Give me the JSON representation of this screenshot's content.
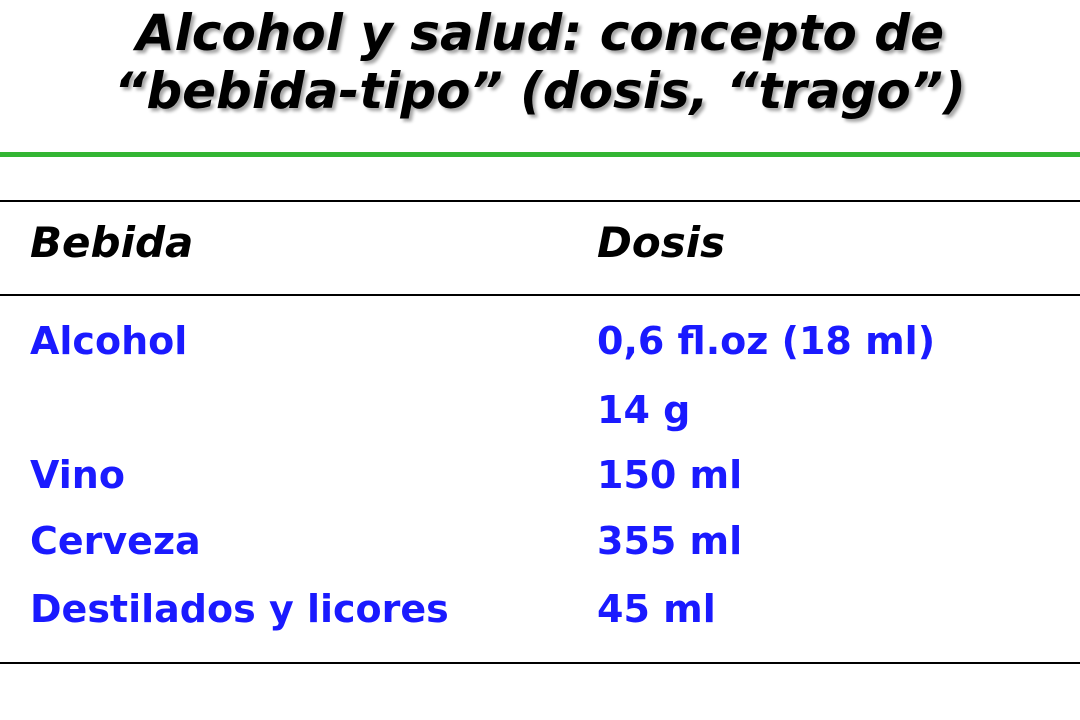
{
  "title": {
    "line1": "Alcohol y salud: concepto de",
    "line2": "“bebida-tipo” (dosis, “trago”)"
  },
  "colors": {
    "title_text": "#000000",
    "green_rule": "#33b533",
    "table_text": "#1a1aff",
    "header_text": "#000000"
  },
  "table": {
    "headers": [
      "Bebida",
      "Dosis"
    ],
    "rows": [
      {
        "bebida": "Alcohol",
        "dosis": "0,6 fl.oz (18 ml)"
      },
      {
        "bebida": "",
        "dosis": "14 g"
      },
      {
        "bebida": "Vino",
        "dosis": "150 ml"
      },
      {
        "bebida": "Cerveza",
        "dosis": "355 ml"
      },
      {
        "bebida": "Destilados y licores",
        "dosis": "45 ml"
      }
    ]
  }
}
